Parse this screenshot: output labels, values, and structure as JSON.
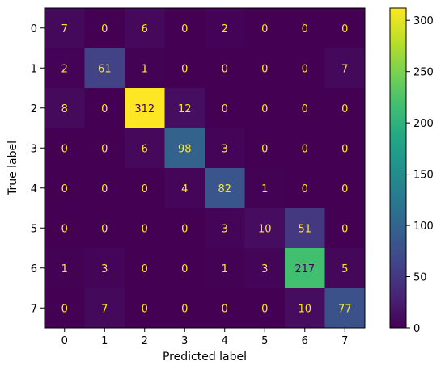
{
  "chart_data": {
    "type": "heatmap",
    "title": "",
    "xlabel": "Predicted label",
    "ylabel": "True label",
    "x_categories": [
      "0",
      "1",
      "2",
      "3",
      "4",
      "5",
      "6",
      "7"
    ],
    "y_categories": [
      "0",
      "1",
      "2",
      "3",
      "4",
      "5",
      "6",
      "7"
    ],
    "matrix": [
      [
        7,
        0,
        6,
        0,
        2,
        0,
        0,
        0
      ],
      [
        2,
        61,
        1,
        0,
        0,
        0,
        0,
        7
      ],
      [
        8,
        0,
        312,
        12,
        0,
        0,
        0,
        0
      ],
      [
        0,
        0,
        6,
        98,
        3,
        0,
        0,
        0
      ],
      [
        0,
        0,
        0,
        4,
        82,
        1,
        0,
        0
      ],
      [
        0,
        0,
        0,
        0,
        3,
        10,
        51,
        0
      ],
      [
        1,
        3,
        0,
        0,
        1,
        3,
        217,
        5
      ],
      [
        0,
        7,
        0,
        0,
        0,
        0,
        10,
        77
      ]
    ],
    "colormap": "viridis",
    "value_range": [
      0,
      312
    ],
    "colorbar": {
      "ticks": [
        0,
        50,
        100,
        150,
        200,
        250,
        300
      ],
      "tick_labels": [
        "0",
        "50",
        "100",
        "150",
        "200",
        "250",
        "300"
      ]
    },
    "text_color_light": "#fde725",
    "text_color_dark": "#440154",
    "grid": false,
    "legend": "colorbar-right"
  }
}
